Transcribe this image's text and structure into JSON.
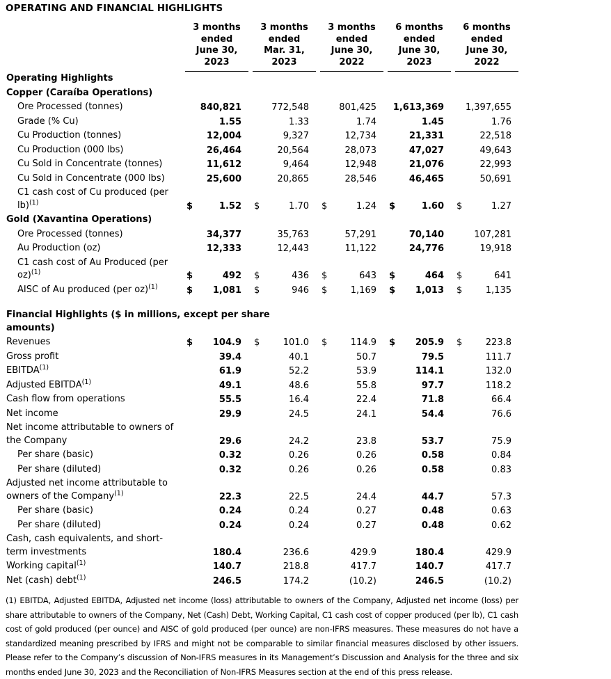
{
  "title": "OPERATING AND FINANCIAL HIGHLIGHTS",
  "table": {
    "currency_symbol": "$",
    "columns": [
      {
        "label": "3 months ended June 30, 2023",
        "lines": [
          "3 months",
          "ended",
          "June 30,",
          "2023"
        ],
        "emphasis": true
      },
      {
        "label": "3 months ended Mar. 31, 2023",
        "lines": [
          "3 months",
          "ended",
          "Mar. 31,",
          "2023"
        ],
        "emphasis": false
      },
      {
        "label": "3 months ended June 30, 2022",
        "lines": [
          "3 months",
          "ended",
          "June 30,",
          "2022"
        ],
        "emphasis": false
      },
      {
        "label": "6 months ended June 30, 2023",
        "lines": [
          "6 months",
          "ended",
          "June 30,",
          "2023"
        ],
        "emphasis": true
      },
      {
        "label": "6 months ended June 30, 2022",
        "lines": [
          "6 months",
          "ended",
          "June 30,",
          "2022"
        ],
        "emphasis": false
      }
    ],
    "rows": [
      {
        "type": "section",
        "lines": [
          "Operating Highlights"
        ]
      },
      {
        "type": "section",
        "lines": [
          "Copper (Caraíba Operations)"
        ]
      },
      {
        "type": "data",
        "lines": [
          "Ore Processed (tonnes)"
        ],
        "indent": true,
        "values": [
          "840,821",
          "772,548",
          "801,425",
          "1,613,369",
          "1,397,655"
        ]
      },
      {
        "type": "data",
        "lines": [
          "Grade (% Cu)"
        ],
        "indent": true,
        "values": [
          "1.55",
          "1.33",
          "1.74",
          "1.45",
          "1.76"
        ]
      },
      {
        "type": "data",
        "lines": [
          "Cu Production (tonnes)"
        ],
        "indent": true,
        "values": [
          "12,004",
          "9,327",
          "12,734",
          "21,331",
          "22,518"
        ]
      },
      {
        "type": "data",
        "lines": [
          "Cu Production (000 lbs)"
        ],
        "indent": true,
        "values": [
          "26,464",
          "20,564",
          "28,073",
          "47,027",
          "49,643"
        ]
      },
      {
        "type": "data",
        "lines": [
          "Cu Sold in Concentrate (tonnes)"
        ],
        "indent": true,
        "values": [
          "11,612",
          "9,464",
          "12,948",
          "21,076",
          "22,993"
        ]
      },
      {
        "type": "data",
        "lines": [
          "Cu Sold in Concentrate (000 lbs)"
        ],
        "indent": true,
        "values": [
          "25,600",
          "20,865",
          "28,546",
          "46,465",
          "50,691"
        ]
      },
      {
        "type": "data",
        "lines": [
          "C1 cash cost of Cu produced (per",
          "lb)"
        ],
        "sup": "(1)",
        "indent": true,
        "dollar": true,
        "values": [
          "1.52",
          "1.70",
          "1.24",
          "1.60",
          "1.27"
        ]
      },
      {
        "type": "section",
        "lines": [
          "Gold (Xavantina Operations)"
        ]
      },
      {
        "type": "data",
        "lines": [
          "Ore Processed (tonnes)"
        ],
        "indent": true,
        "values": [
          "34,377",
          "35,763",
          "57,291",
          "70,140",
          "107,281"
        ]
      },
      {
        "type": "data",
        "lines": [
          "Au Production (oz)"
        ],
        "indent": true,
        "values": [
          "12,333",
          "12,443",
          "11,122",
          "24,776",
          "19,918"
        ]
      },
      {
        "type": "data",
        "lines": [
          "C1 cash cost of Au Produced (per",
          "oz)"
        ],
        "sup": "(1)",
        "indent": true,
        "dollar": true,
        "values": [
          "492",
          "436",
          "643",
          "464",
          "641"
        ]
      },
      {
        "type": "data",
        "lines": [
          "AISC of Au produced (per oz)"
        ],
        "sup": "(1)",
        "indent": true,
        "dollar": true,
        "values": [
          "1,081",
          "946",
          "1,169",
          "1,013",
          "1,135"
        ]
      },
      {
        "type": "spacer"
      },
      {
        "type": "section",
        "lines": [
          "Financial Highlights ($ in millions, except per share",
          "amounts)"
        ]
      },
      {
        "type": "data",
        "lines": [
          "Revenues"
        ],
        "dollar": true,
        "values": [
          "104.9",
          "101.0",
          "114.9",
          "205.9",
          "223.8"
        ]
      },
      {
        "type": "data",
        "lines": [
          "Gross profit"
        ],
        "values": [
          "39.4",
          "40.1",
          "50.7",
          "79.5",
          "111.7"
        ]
      },
      {
        "type": "data",
        "lines": [
          "EBITDA"
        ],
        "sup": "(1)",
        "values": [
          "61.9",
          "52.2",
          "53.9",
          "114.1",
          "132.0"
        ]
      },
      {
        "type": "data",
        "lines": [
          "Adjusted EBITDA"
        ],
        "sup": "(1)",
        "values": [
          "49.1",
          "48.6",
          "55.8",
          "97.7",
          "118.2"
        ]
      },
      {
        "type": "data",
        "lines": [
          "Cash flow from operations"
        ],
        "values": [
          "55.5",
          "16.4",
          "22.4",
          "71.8",
          "66.4"
        ]
      },
      {
        "type": "data",
        "lines": [
          "Net income"
        ],
        "values": [
          "29.9",
          "24.5",
          "24.1",
          "54.4",
          "76.6"
        ]
      },
      {
        "type": "data",
        "lines": [
          "Net income attributable to owners of",
          "the Company"
        ],
        "values": [
          "29.6",
          "24.2",
          "23.8",
          "53.7",
          "75.9"
        ]
      },
      {
        "type": "data",
        "lines": [
          "Per share (basic)"
        ],
        "indent": true,
        "values": [
          "0.32",
          "0.26",
          "0.26",
          "0.58",
          "0.84"
        ]
      },
      {
        "type": "data",
        "lines": [
          "Per share (diluted)"
        ],
        "indent": true,
        "values": [
          "0.32",
          "0.26",
          "0.26",
          "0.58",
          "0.83"
        ]
      },
      {
        "type": "data",
        "lines": [
          "Adjusted net income attributable to",
          "owners of the Company"
        ],
        "sup": "(1)",
        "values": [
          "22.3",
          "22.5",
          "24.4",
          "44.7",
          "57.3"
        ]
      },
      {
        "type": "data",
        "lines": [
          "Per share (basic)"
        ],
        "indent": true,
        "values": [
          "0.24",
          "0.24",
          "0.27",
          "0.48",
          "0.63"
        ]
      },
      {
        "type": "data",
        "lines": [
          "Per share (diluted)"
        ],
        "indent": true,
        "values": [
          "0.24",
          "0.24",
          "0.27",
          "0.48",
          "0.62"
        ]
      },
      {
        "type": "data",
        "lines": [
          "Cash, cash equivalents, and short-",
          "term investments"
        ],
        "values": [
          "180.4",
          "236.6",
          "429.9",
          "180.4",
          "429.9"
        ]
      },
      {
        "type": "data",
        "lines": [
          "Working capital"
        ],
        "sup": "(1)",
        "values": [
          "140.7",
          "218.8",
          "417.7",
          "140.7",
          "417.7"
        ]
      },
      {
        "type": "data",
        "lines": [
          "Net (cash) debt"
        ],
        "sup": "(1)",
        "values": [
          "246.5",
          "174.2",
          "(10.2)",
          "246.5",
          "(10.2)"
        ]
      }
    ]
  },
  "footnote": "(1) EBITDA, Adjusted EBITDA, Adjusted net income (loss) attributable to owners of the Company, Adjusted net income (loss) per share attributable to owners of the Company, Net (Cash) Debt, Working Capital, C1 cash cost of copper produced (per lb), C1 cash cost of gold produced (per ounce) and AISC of gold produced (per ounce) are non-IFRS measures. These measures do not have a standardized meaning prescribed by IFRS and might not be comparable to similar financial measures disclosed by other issuers. Please refer to the Company’s discussion of Non-IFRS measures in its Management’s Discussion and Analysis for the three and six months ended June 30, 2023 and the Reconciliation of Non-IFRS Measures section at the end of this press release."
}
